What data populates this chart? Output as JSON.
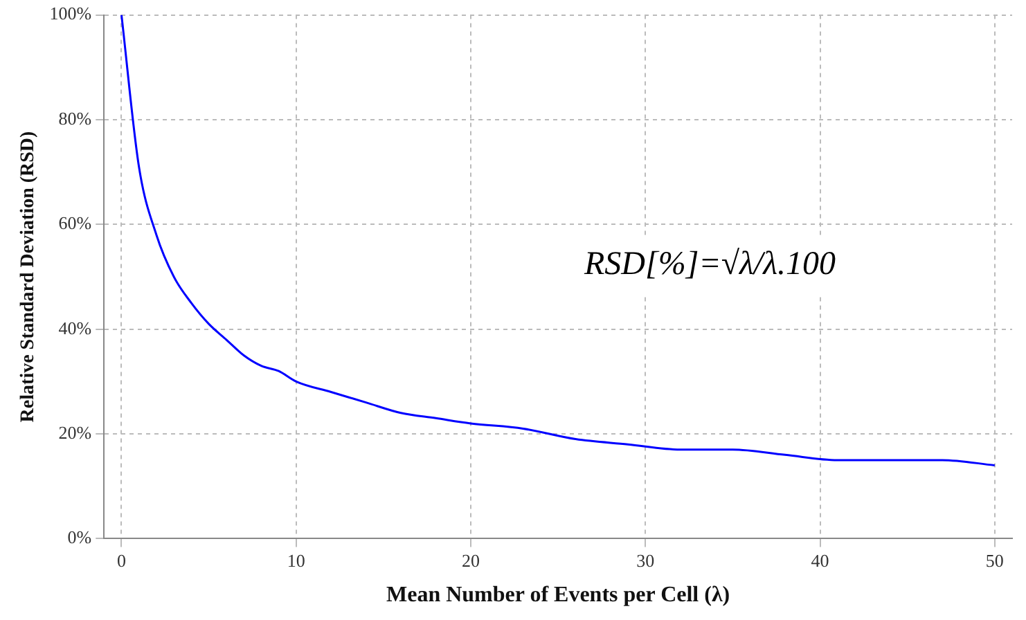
{
  "chart_data": {
    "type": "line",
    "xlabel": "Mean Number of Events per Cell (λ)",
    "ylabel": "Relative Standard Deviation (RSD)",
    "x": [
      0,
      1,
      2,
      3,
      4,
      5,
      6,
      7,
      8,
      9,
      10,
      12,
      14,
      16,
      18,
      20,
      23,
      26,
      29,
      32,
      35,
      38,
      41,
      44,
      47,
      50
    ],
    "series": [
      {
        "color": "#0000ff",
        "values": [
          100,
          71,
          58,
          50,
          45,
          41,
          38,
          35,
          33,
          32,
          30,
          28,
          26,
          24,
          23,
          22,
          21,
          19,
          18,
          17,
          17,
          16,
          15,
          15,
          15,
          14
        ]
      }
    ],
    "xlim": [
      -1,
      51
    ],
    "xticks": [
      0,
      10,
      20,
      30,
      40,
      50
    ],
    "ylim": [
      0,
      100
    ],
    "yticks": [
      {
        "value": 0,
        "label": "0%"
      },
      {
        "value": 20,
        "label": "20%"
      },
      {
        "value": 40,
        "label": "40%"
      },
      {
        "value": 60,
        "label": "60%"
      },
      {
        "value": 80,
        "label": "80%"
      },
      {
        "value": 100,
        "label": "100%"
      }
    ],
    "grid": true,
    "legend": false,
    "marker": "none",
    "line_style": "solid",
    "annotations": [
      "RSD[%]=√λ/λ.100"
    ]
  }
}
